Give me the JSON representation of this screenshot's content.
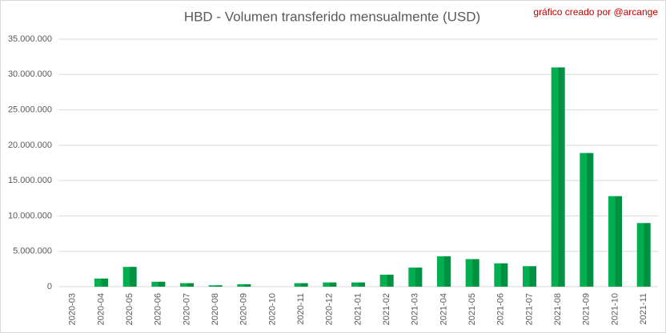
{
  "chart_data": {
    "type": "bar",
    "title": "HBD - Volumen transferido mensualmente (USD)",
    "annotation": "gráfico creado por @arcange",
    "categories": [
      "2020-03",
      "2020-04",
      "2020-05",
      "2020-06",
      "2020-07",
      "2020-08",
      "2020-09",
      "2020-10",
      "2020-11",
      "2020-12",
      "2021-01",
      "2021-02",
      "2021-03",
      "2021-04",
      "2021-05",
      "2021-06",
      "2021-07",
      "2021-08",
      "2021-09",
      "2021-10",
      "2021-11"
    ],
    "values": [
      0,
      1150000,
      2800000,
      700000,
      500000,
      200000,
      350000,
      0,
      500000,
      600000,
      600000,
      1700000,
      2700000,
      4300000,
      3900000,
      3300000,
      2900000,
      31000000,
      18900000,
      12800000,
      9000000
    ],
    "color": "#00b050",
    "ylim": [
      0,
      35000000
    ],
    "yticks": [
      0,
      {
        "value": 5000000,
        "label": "5.000.000"
      },
      {
        "value": 10000000,
        "label": "10.000.000"
      },
      {
        "value": 15000000,
        "label": "15.000.000"
      },
      {
        "value": 20000000,
        "label": "20.000.000"
      },
      {
        "value": 25000000,
        "label": "25.000.000"
      },
      {
        "value": 30000000,
        "label": "30.000.000"
      },
      {
        "value": 35000000,
        "label": "35.000.000"
      }
    ],
    "grid": true
  }
}
